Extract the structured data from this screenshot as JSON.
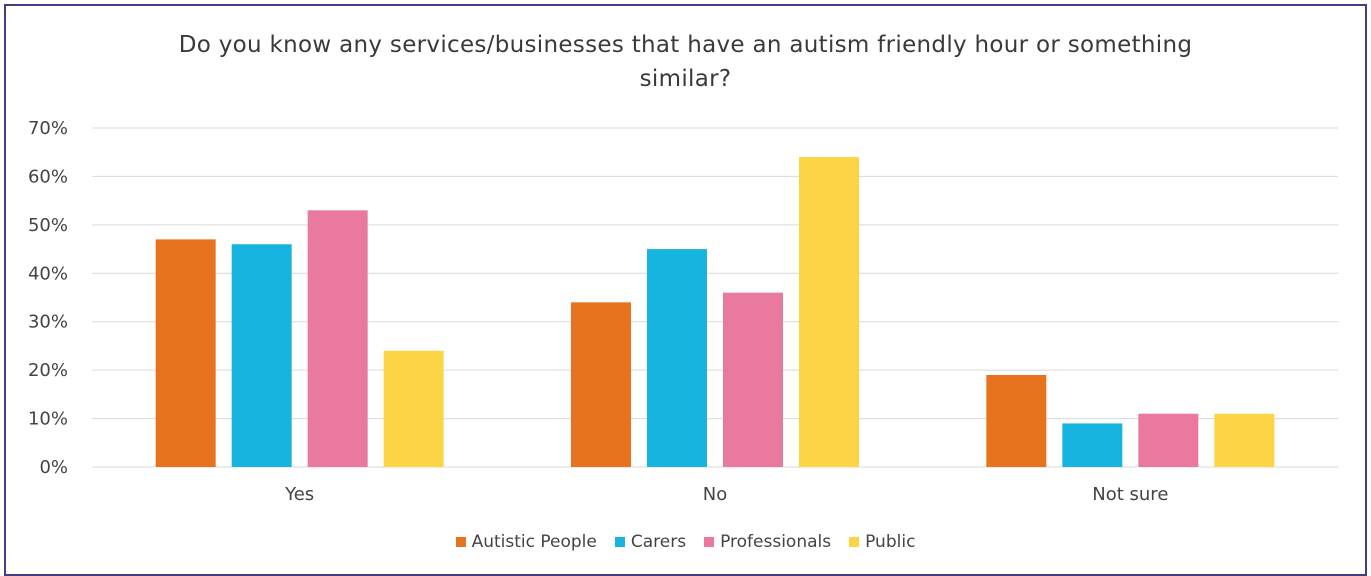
{
  "chart_data": {
    "type": "bar",
    "title": "Do you know any services/businesses that have an autism friendly hour or something similar?",
    "title_lines": [
      "Do you know any services/businesses that have an autism friendly hour or something",
      "similar?"
    ],
    "categories": [
      "Yes",
      "No",
      "Not sure"
    ],
    "series": [
      {
        "name": "Autistic People",
        "color": "#e8731e",
        "values": [
          47,
          34,
          19
        ]
      },
      {
        "name": "Carers",
        "color": "#18b4e0",
        "values": [
          46,
          45,
          9
        ]
      },
      {
        "name": "Professionals",
        "color": "#e9799f",
        "values": [
          53,
          36,
          11
        ]
      },
      {
        "name": "Public",
        "color": "#fbd546",
        "values": [
          24,
          64,
          11
        ]
      }
    ],
    "ylim": [
      0,
      70
    ],
    "yticks": [
      0,
      10,
      20,
      30,
      40,
      50,
      60,
      70
    ],
    "ytick_labels": [
      "0%",
      "10%",
      "20%",
      "30%",
      "40%",
      "50%",
      "60%",
      "70%"
    ],
    "grid": true,
    "legend_position": "bottom"
  },
  "style": {
    "frame_color": "#4a3a86",
    "grid_color": "#d9d9d9"
  }
}
